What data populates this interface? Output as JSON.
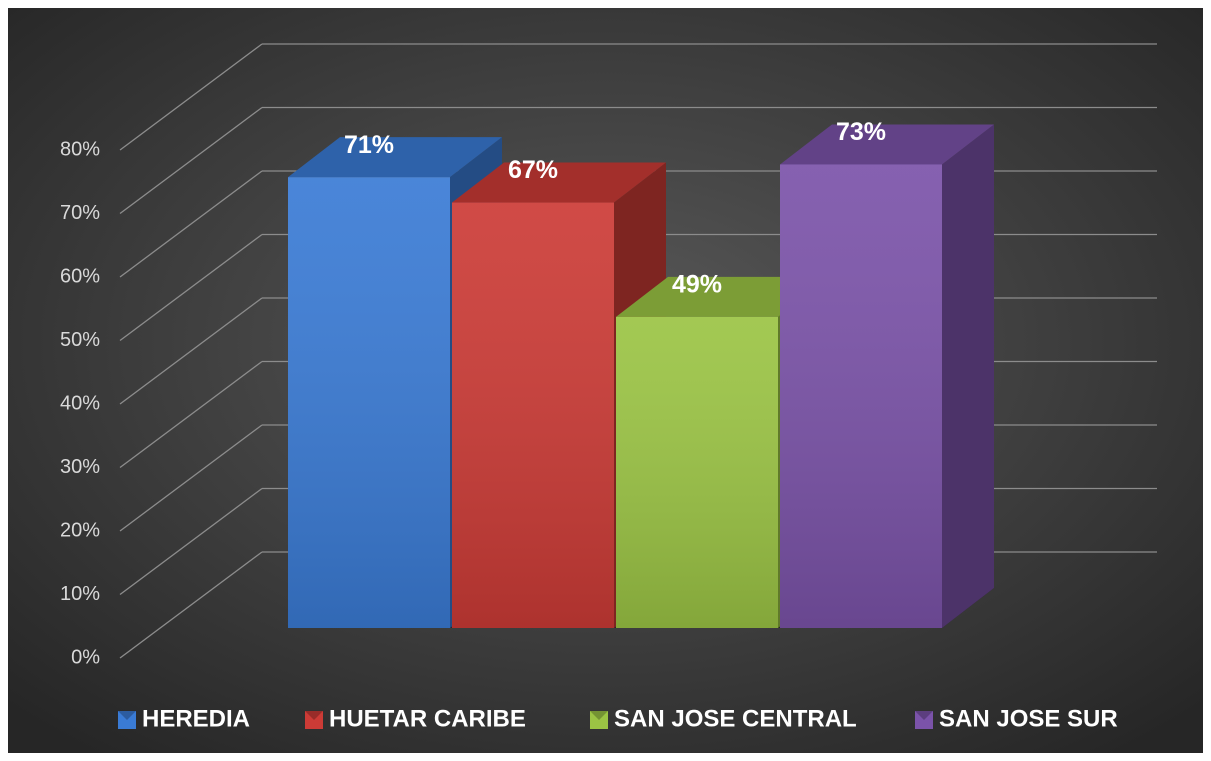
{
  "chart_data": {
    "type": "bar",
    "series": [
      {
        "name": "HEREDIA",
        "color": "#3a7bd5",
        "values": [
          71
        ],
        "value_labels": [
          "71%"
        ]
      },
      {
        "name": "HUETAR CARIBE",
        "color": "#cc3b36",
        "values": [
          67
        ],
        "value_labels": [
          "67%"
        ]
      },
      {
        "name": "SAN JOSE CENTRAL",
        "color": "#9bc444",
        "values": [
          49
        ],
        "value_labels": [
          "49%"
        ]
      },
      {
        "name": "SAN JOSE SUR",
        "color": "#7b53a9",
        "values": [
          73
        ],
        "value_labels": [
          "73%"
        ]
      }
    ],
    "ylim": [
      0,
      80
    ],
    "yticks": [
      {
        "value": 0,
        "label": "0%"
      },
      {
        "value": 10,
        "label": "10%"
      },
      {
        "value": 20,
        "label": "20%"
      },
      {
        "value": 30,
        "label": "30%"
      },
      {
        "value": 40,
        "label": "40%"
      },
      {
        "value": 50,
        "label": "50%"
      },
      {
        "value": 60,
        "label": "60%"
      },
      {
        "value": 70,
        "label": "70%"
      },
      {
        "value": 80,
        "label": "80%"
      }
    ],
    "grid": true,
    "legend": "bottom"
  }
}
